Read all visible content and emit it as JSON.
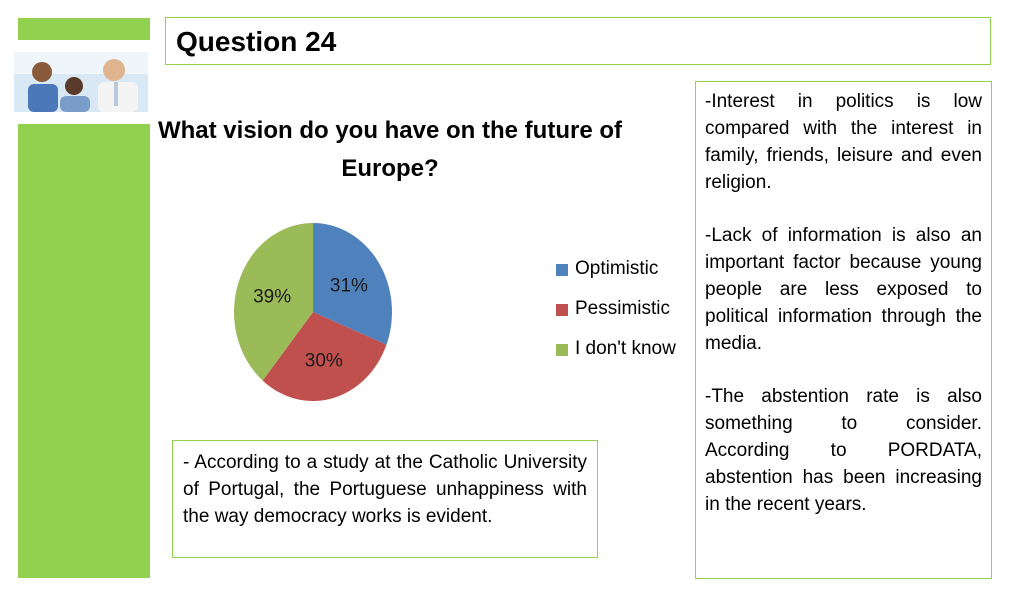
{
  "slide": {
    "title": "Question 24",
    "chart_title_line1": "What vision do you have on the future of",
    "chart_title_line2": "Europe?",
    "note": "- According to a study at the Catholic University of Portugal, the Portuguese unhappiness with the way democracy works is evident.",
    "side_paragraphs": [
      "-Interest in politics is low compared with the interest in family, friends, leisure and even religion.",
      "-Lack of information is also an important factor because young people are less exposed to political information through the media.",
      "-The abstention rate is also something to consider. According to PORDATA, abstention has been increasing in the recent years."
    ],
    "photo_icon": "people-photo"
  },
  "chart_data": {
    "type": "pie",
    "title": "What vision do you have on the future of Europe?",
    "categories": [
      "Optimistic",
      "Pessimistic",
      "I don't know"
    ],
    "values": [
      31,
      30,
      39
    ],
    "labels": [
      "31%",
      "30%",
      "39%"
    ],
    "colors": [
      "#4f81bd",
      "#c0504d",
      "#9bbb59"
    ],
    "legend_position": "right"
  }
}
